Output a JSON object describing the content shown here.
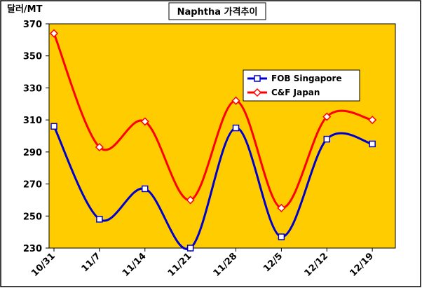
{
  "chart_data": {
    "type": "line",
    "title": "Naphtha 가격추이",
    "unit_label": "달러/MT",
    "categories": [
      "10/31",
      "11/7",
      "11/14",
      "11/21",
      "11/28",
      "12/5",
      "12/12",
      "12/19"
    ],
    "ylim": [
      230,
      370
    ],
    "yticks": [
      230,
      250,
      270,
      290,
      310,
      330,
      350,
      370
    ],
    "grid": false,
    "smooth": true,
    "legend_position": "upper-right",
    "series": [
      {
        "name": "FOB Singapore",
        "values": [
          306,
          248,
          267,
          230,
          305,
          237,
          298,
          295
        ],
        "color": "#0000cc",
        "marker": "square"
      },
      {
        "name": "C&F Japan",
        "values": [
          364,
          293,
          309,
          260,
          322,
          255,
          312,
          310
        ],
        "color": "#ff0000",
        "marker": "diamond"
      }
    ],
    "colors": {
      "plot_bg": "#ffcc00"
    }
  }
}
